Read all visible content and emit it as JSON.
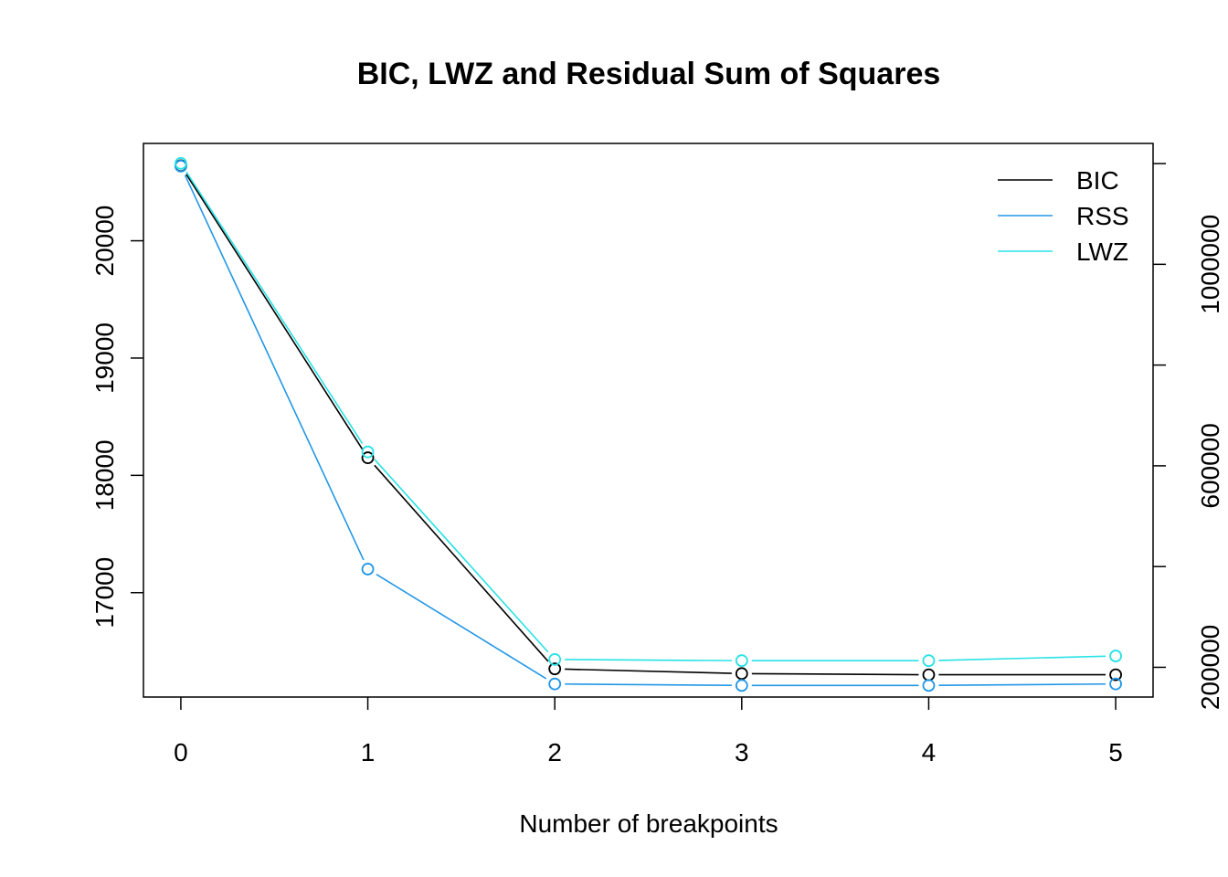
{
  "chart_data": {
    "type": "line",
    "title": "BIC, LWZ and Residual Sum of Squares",
    "xlabel": "Number of breakpoints",
    "x": [
      0,
      1,
      2,
      3,
      4,
      5
    ],
    "xlim": [
      -0.2,
      5.2
    ],
    "x_ticks": [
      "0",
      "1",
      "2",
      "3",
      "4",
      "5"
    ],
    "left_axis": {
      "ylim": [
        16110,
        20830
      ],
      "ticks": [
        17000,
        18000,
        19000,
        20000
      ],
      "tick_labels": [
        "17000",
        "18000",
        "19000",
        "20000"
      ]
    },
    "right_axis": {
      "ylim": [
        141000,
        1240000
      ],
      "ticks": [
        200000,
        400000,
        600000,
        800000,
        1000000,
        1200000
      ],
      "tick_labels": [
        "200000",
        "",
        "600000",
        "",
        "1000000",
        ""
      ]
    },
    "series": [
      {
        "name": "BIC",
        "axis": "left",
        "color": "#000000",
        "values": [
          20640,
          18150,
          16350,
          16310,
          16300,
          16300
        ]
      },
      {
        "name": "RSS",
        "axis": "right",
        "color": "#2297E6",
        "values": [
          1195000,
          395000,
          167000,
          164000,
          164000,
          167000
        ]
      },
      {
        "name": "LWZ",
        "axis": "left",
        "color": "#28E2E5",
        "values": [
          20660,
          18200,
          16430,
          16420,
          16420,
          16460
        ]
      }
    ],
    "legend_position": "top-right",
    "grid": false
  }
}
